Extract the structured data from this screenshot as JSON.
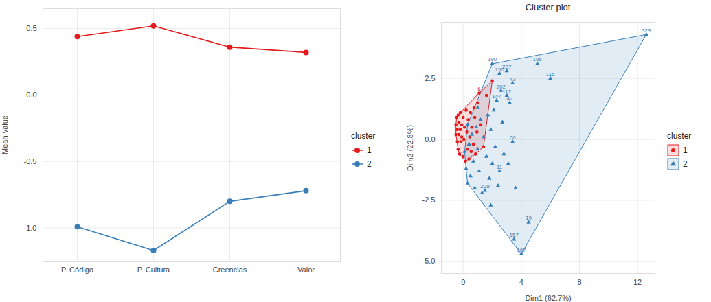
{
  "chart_data": [
    {
      "type": "line",
      "categories": [
        "P. Código",
        "P. Cultura",
        "Creencias",
        "Valor"
      ],
      "ylabel": "Mean value",
      "ylim": [
        -1.25,
        0.65
      ],
      "yticks": [
        {
          "value": -1.0,
          "label": "-1.0"
        },
        {
          "value": -0.5,
          "label": "-0.5"
        },
        {
          "value": 0,
          "label": "0.0"
        },
        {
          "value": 0.5,
          "label": "0.5"
        }
      ],
      "grid": true,
      "legend": "right",
      "legend_title": "cluster",
      "marker": "circle",
      "series": [
        {
          "name": "1",
          "color": "#E41A1C",
          "values": [
            0.44,
            0.52,
            0.36,
            0.32
          ]
        },
        {
          "name": "2",
          "color": "#377EB8",
          "values": [
            -0.99,
            -1.17,
            -0.8,
            -0.72
          ]
        }
      ]
    },
    {
      "type": "scatter",
      "title": "Cluster plot",
      "xlabel": "Dim1 (62.7%)",
      "ylabel": "Dim2 (22.8%)",
      "xlim": [
        -1.5,
        13.2
      ],
      "ylim": [
        -5.5,
        4.8
      ],
      "xticks": [
        0,
        4,
        8,
        12
      ],
      "yticks": [
        {
          "value": -5.0,
          "label": "-5.0"
        },
        {
          "value": -2.5,
          "label": "-2.5"
        },
        {
          "value": 0,
          "label": "0.0"
        },
        {
          "value": 2.5,
          "label": "2.5"
        }
      ],
      "grid": true,
      "legend": "right",
      "legend_title": "cluster",
      "series": [
        {
          "name": "1",
          "color": "#E41A1C",
          "marker": "circle",
          "x": [
            -0.5,
            -0.5,
            -0.45,
            -0.4,
            -0.4,
            -0.35,
            -0.35,
            -0.3,
            -0.3,
            -0.25,
            -0.2,
            -0.2,
            -0.15,
            -0.1,
            -0.1,
            0.0,
            0.0,
            0.05,
            0.1,
            0.15,
            0.2,
            0.25,
            0.3,
            0.35,
            0.4,
            0.45,
            0.5,
            0.55,
            0.6,
            0.7,
            0.75,
            0.8,
            0.85,
            0.95,
            1.0,
            1.1,
            1.2,
            1.4,
            1.6,
            2.0
          ],
          "y": [
            0.6,
            0.2,
            0.9,
            -0.1,
            0.4,
            -0.4,
            1.0,
            0.2,
            0.7,
            -0.6,
            0.4,
            1.1,
            -0.1,
            0.6,
            0.1,
            -0.7,
            0.9,
            0.0,
            0.5,
            -0.9,
            1.2,
            0.3,
            -0.4,
            0.8,
            -0.8,
            0.1,
            1.1,
            -0.5,
            0.5,
            -0.2,
            1.3,
            0.9,
            -0.6,
            0.3,
            1.5,
            1.9,
            0.6,
            -0.3,
            1.8,
            2.4
          ],
          "labels": [
            null,
            null,
            null,
            null,
            null,
            null,
            null,
            null,
            null,
            null,
            null,
            null,
            null,
            null,
            null,
            null,
            null,
            null,
            null,
            null,
            null,
            null,
            null,
            null,
            null,
            null,
            null,
            null,
            null,
            null,
            null,
            null,
            null,
            null,
            null,
            "6",
            null,
            null,
            null,
            null
          ]
        },
        {
          "name": "2",
          "color": "#377EB8",
          "marker": "triangle",
          "x": [
            0.1,
            0.2,
            0.3,
            0.4,
            0.5,
            0.6,
            0.7,
            0.8,
            0.9,
            1.0,
            1.1,
            1.2,
            1.3,
            1.4,
            1.5,
            1.6,
            1.7,
            1.8,
            1.9,
            2.0,
            2.1,
            2.2,
            2.3,
            2.4,
            2.5,
            2.6,
            2.5,
            2.0,
            2.7,
            2.8,
            3.0,
            3.0,
            3.2,
            3.4,
            3.4,
            3.1,
            3.6,
            5.1,
            6.0,
            12.6,
            4.5,
            3.5,
            4.0,
            1.9,
            0.3,
            1.0
          ],
          "y": [
            -0.5,
            -1.2,
            -1.8,
            -0.2,
            -1.5,
            0.2,
            -0.9,
            -2.0,
            0.5,
            -0.4,
            -1.3,
            0.8,
            -2.2,
            0.1,
            -2.1,
            -0.7,
            1.0,
            -1.6,
            0.4,
            -1.0,
            1.2,
            -0.3,
            1.6,
            -1.9,
            -1.3,
            2.0,
            2.7,
            3.1,
            0.7,
            -0.6,
            2.8,
            1.8,
            1.5,
            2.3,
            -0.1,
            -1.0,
            -2.0,
            3.1,
            2.5,
            4.3,
            -3.4,
            -4.1,
            -4.7,
            -2.7,
            0.6,
            1.3
          ],
          "labels": [
            null,
            null,
            null,
            null,
            null,
            null,
            null,
            null,
            null,
            null,
            null,
            null,
            null,
            null,
            "228",
            null,
            null,
            null,
            null,
            null,
            null,
            null,
            "147",
            null,
            "11",
            "202",
            "150",
            "190",
            null,
            null,
            "237",
            "112",
            "42",
            "43",
            "66",
            null,
            null,
            "196",
            "115",
            "323",
            "19",
            "157",
            "167",
            null,
            null,
            null
          ]
        }
      ]
    }
  ]
}
